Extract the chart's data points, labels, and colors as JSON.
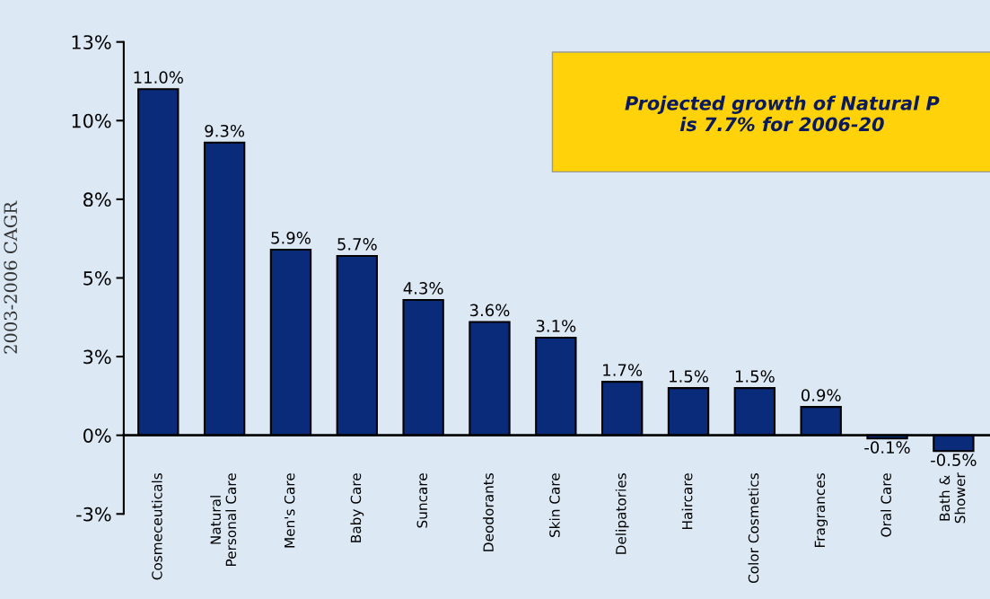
{
  "chart_data": {
    "type": "bar",
    "ylabel": "2003-2006 CAGR",
    "categories": [
      "Cosmeceuticals",
      "Natural\nPersonal Care",
      "Men's Care",
      "Baby Care",
      "Suncare",
      "Deodorants",
      "Skin Care",
      "Delipatories",
      "Haircare",
      "Color Cosmetics",
      "Fragrances",
      "Oral Care",
      "Bath &\nShower"
    ],
    "values": [
      11.0,
      9.3,
      5.9,
      5.7,
      4.3,
      3.6,
      3.1,
      1.7,
      1.5,
      1.5,
      0.9,
      -0.1,
      -0.5
    ],
    "value_labels": [
      "11.0%",
      "9.3%",
      "5.9%",
      "5.7%",
      "4.3%",
      "3.6%",
      "3.1%",
      "1.7%",
      "1.5%",
      "1.5%",
      "0.9%",
      "-0.1%",
      "-0.5%"
    ],
    "color": "#0a2a7a",
    "ylim": [
      -2.5,
      12.5
    ],
    "yticks": [
      {
        "value": -2.5,
        "label": "-3%"
      },
      {
        "value": 0,
        "label": "0%"
      },
      {
        "value": 2.5,
        "label": "3%"
      },
      {
        "value": 5,
        "label": "5%"
      },
      {
        "value": 7.5,
        "label": "8%"
      },
      {
        "value": 10,
        "label": "10%"
      },
      {
        "value": 12.5,
        "label": "13%"
      }
    ],
    "legend": false,
    "annotations": [
      "Projected growth of Natural P\nis 7.7% for 2006-20"
    ]
  }
}
